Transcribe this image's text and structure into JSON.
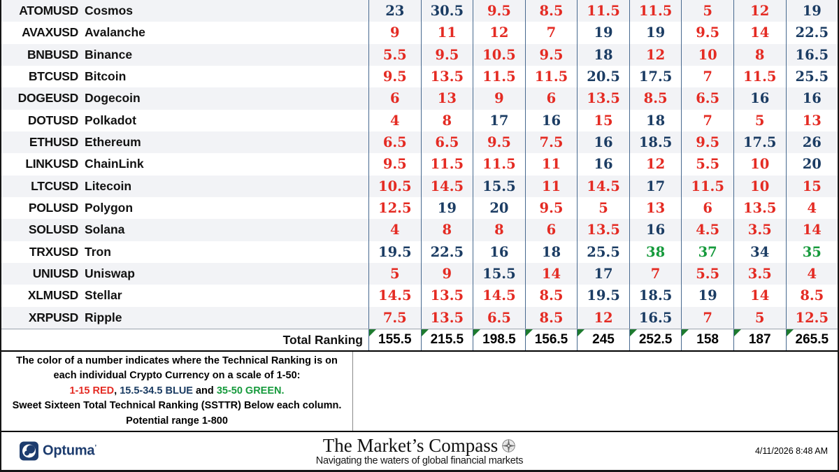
{
  "table": {
    "rows": [
      {
        "ticker": "ATOMUSD",
        "name": "Cosmos",
        "values": [
          23,
          30.5,
          9.5,
          8.5,
          11.5,
          11.5,
          5,
          12,
          19
        ]
      },
      {
        "ticker": "AVAXUSD",
        "name": "Avalanche",
        "values": [
          9,
          11,
          12,
          7,
          19,
          19,
          9.5,
          14,
          22.5
        ]
      },
      {
        "ticker": "BNBUSD",
        "name": "Binance",
        "values": [
          5.5,
          9.5,
          10.5,
          9.5,
          18,
          12,
          10,
          8,
          16.5
        ]
      },
      {
        "ticker": "BTCUSD",
        "name": "Bitcoin",
        "values": [
          9.5,
          13.5,
          11.5,
          11.5,
          20.5,
          17.5,
          7,
          11.5,
          25.5
        ]
      },
      {
        "ticker": "DOGEUSD",
        "name": "Dogecoin",
        "values": [
          6,
          13,
          9,
          6,
          13.5,
          8.5,
          6.5,
          16,
          16
        ]
      },
      {
        "ticker": "DOTUSD",
        "name": "Polkadot",
        "values": [
          4,
          8,
          17,
          16,
          15,
          18,
          7,
          5,
          13
        ]
      },
      {
        "ticker": "ETHUSD",
        "name": "Ethereum",
        "values": [
          6.5,
          6.5,
          9.5,
          7.5,
          16,
          18.5,
          9.5,
          17.5,
          26
        ]
      },
      {
        "ticker": "LINKUSD",
        "name": "ChainLink",
        "values": [
          9.5,
          11.5,
          11.5,
          11,
          16,
          12,
          5.5,
          10,
          20
        ]
      },
      {
        "ticker": "LTCUSD",
        "name": "Litecoin",
        "values": [
          10.5,
          14.5,
          15.5,
          11,
          14.5,
          17,
          11.5,
          10,
          15
        ]
      },
      {
        "ticker": "POLUSD",
        "name": "Polygon",
        "values": [
          12.5,
          19,
          20,
          9.5,
          5,
          13,
          6,
          13.5,
          4
        ]
      },
      {
        "ticker": "SOLUSD",
        "name": "Solana",
        "values": [
          4,
          8,
          8,
          6,
          13.5,
          16,
          4.5,
          3.5,
          14
        ]
      },
      {
        "ticker": "TRXUSD",
        "name": "Tron",
        "values": [
          19.5,
          22.5,
          16,
          18,
          25.5,
          38,
          37,
          34,
          35
        ]
      },
      {
        "ticker": "UNIUSD",
        "name": "Uniswap",
        "values": [
          5,
          9,
          15.5,
          14,
          17,
          7,
          5.5,
          3.5,
          4
        ]
      },
      {
        "ticker": "XLMUSD",
        "name": "Stellar",
        "values": [
          14.5,
          13.5,
          14.5,
          8.5,
          19.5,
          18.5,
          19,
          14,
          8.5
        ]
      },
      {
        "ticker": "XRPUSD",
        "name": "Ripple",
        "values": [
          7.5,
          13.5,
          6.5,
          8.5,
          12,
          16.5,
          7,
          5,
          12.5
        ]
      }
    ],
    "total_label": "Total Ranking",
    "totals": [
      155.5,
      215.5,
      198.5,
      156.5,
      245,
      252.5,
      158,
      187,
      265.5
    ]
  },
  "legend": {
    "line1": "The color of a number indicates where the Technical Ranking is on",
    "line2": "each individual Crypto Currency on a scale of 1-50:",
    "red_range": "1-15 RED",
    "sep1": ", ",
    "blue_range": "15.5-34.5 BLUE",
    "sep2": " and ",
    "green_range": "35-50 GREEN.",
    "line4": "Sweet Sixteen Total Technical Ranking (SSTTR) Below each column.",
    "line5": "Potential range 1-800"
  },
  "footer": {
    "brand": "Optuma",
    "brand_mark": "’",
    "title": "The Market’s Compass",
    "subtitle": "Navigating the waters of global financial markets",
    "timestamp": "4/11/2026 8:48 AM"
  },
  "colors": {
    "red": "#e42b23",
    "blue": "#1b3c63",
    "green": "#169a3c",
    "total_marker_green": "#1e7b2f"
  },
  "thresholds": {
    "red_max": 15,
    "blue_max": 34.5
  }
}
